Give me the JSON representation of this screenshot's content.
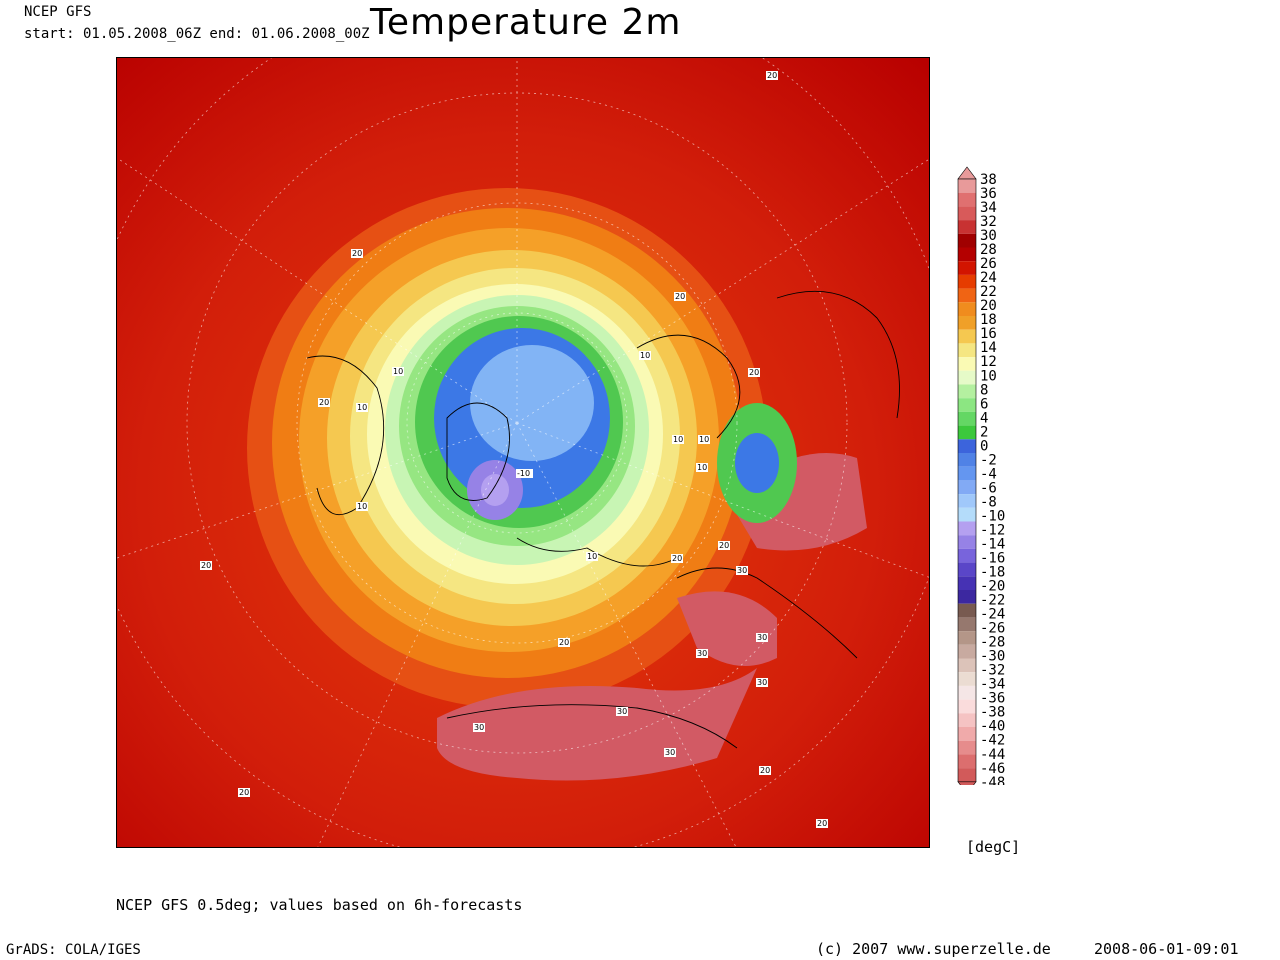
{
  "header": {
    "title": "Temperature 2m",
    "model": "NCEP GFS",
    "period": "start: 01.05.2008_06Z end: 01.06.2008_00Z"
  },
  "map": {
    "projection": "north polar stereographic",
    "variable": "2m temperature",
    "contour_labels": [
      "20",
      "20",
      "20",
      "20",
      "20",
      "20",
      "20",
      "20",
      "20",
      "20",
      "20",
      "20",
      "20",
      "10",
      "10",
      "10",
      "10",
      "10",
      "10",
      "10",
      "10",
      "-10",
      "30",
      "30",
      "30",
      "30",
      "30",
      "30",
      "30",
      "30"
    ],
    "colors": {
      "deep_red": "#b80000",
      "red": "#dc1e0a",
      "red_orange": "#e63c0a",
      "orange": "#f07d14",
      "light_orange": "#f5a028",
      "yellow": "#f5e664",
      "pale_yellow": "#fafab4",
      "pale_green": "#c8f5b4",
      "light_green": "#96e682",
      "green": "#50c850",
      "blue": "#3c78e6",
      "light_blue": "#82b4f5",
      "violet": "#9682e6",
      "pink_hot": "#d25a64"
    }
  },
  "colorbar": {
    "levels": [
      "38",
      "36",
      "34",
      "32",
      "30",
      "28",
      "26",
      "24",
      "22",
      "20",
      "18",
      "16",
      "14",
      "12",
      "10",
      "8",
      "6",
      "4",
      "2",
      "0",
      "-2",
      "-4",
      "-6",
      "-8",
      "-10",
      "-12",
      "-14",
      "-16",
      "-18",
      "-20",
      "-22",
      "-24",
      "-26",
      "-28",
      "-30",
      "-32",
      "-34",
      "-36",
      "-38",
      "-40",
      "-42",
      "-44",
      "-46",
      "-48"
    ],
    "colors": [
      "#e89a9a",
      "#e07070",
      "#d85a5a",
      "#c83232",
      "#a00000",
      "#b40000",
      "#d21400",
      "#e63c00",
      "#f06414",
      "#f08c1e",
      "#f0a028",
      "#f5c850",
      "#f5e682",
      "#fafab4",
      "#e6fac8",
      "#b4f0a0",
      "#8ce682",
      "#64d764",
      "#3cc83c",
      "#3c64dc",
      "#5082e6",
      "#6496f0",
      "#82aaf5",
      "#a0c8fa",
      "#b4dcfa",
      "#b4a0f0",
      "#9682e6",
      "#7864dc",
      "#5a46c8",
      "#4632b4",
      "#3c28a0",
      "#785a50",
      "#96786e",
      "#b49688",
      "#c8aaa0",
      "#dcc3b9",
      "#ebdcd2",
      "#f5e6e6",
      "#fadcdc",
      "#f5c3c3",
      "#f0aaaa",
      "#e68c8c",
      "#dc6e6e",
      "#d25a5a"
    ],
    "unit": "[degC]"
  },
  "footer": {
    "note": "NCEP GFS 0.5deg; values based on 6h-forecasts",
    "software": "GrADS: COLA/IGES",
    "copyright": "(c) 2007 www.superzelle.de",
    "timestamp": "2008-06-01-09:01"
  }
}
